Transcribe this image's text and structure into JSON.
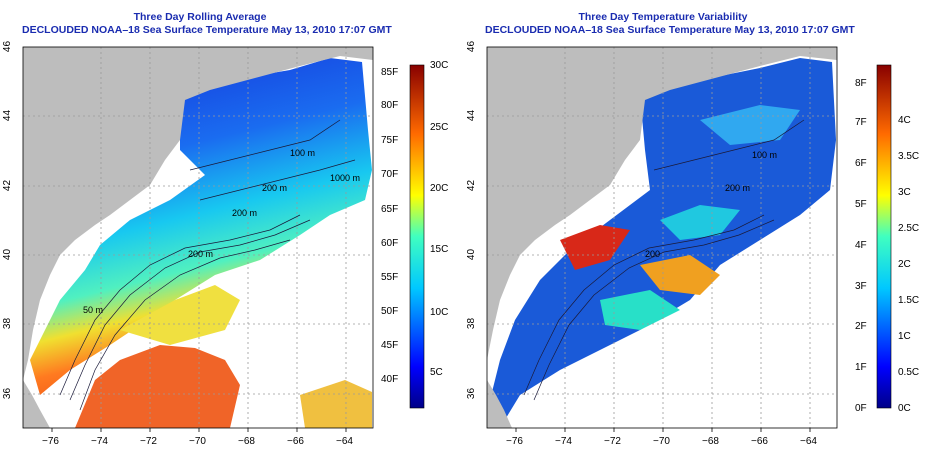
{
  "left_panel": {
    "title_line1": "Three Day Rolling Average",
    "title_line2": "DECLOUDED NOAA–18 Sea Surface Temperature May 13, 2010 17:07 GMT",
    "colorbar_f": [
      "40F",
      "45F",
      "50F",
      "55F",
      "60F",
      "65F",
      "70F",
      "75F",
      "80F",
      "85F"
    ],
    "colorbar_c": [
      "5C",
      "10C",
      "15C",
      "20C",
      "25C",
      "30C"
    ],
    "contour_labels": [
      "100 m",
      "200 m",
      "200 m",
      "50 m",
      "1000 m",
      "200 m"
    ]
  },
  "right_panel": {
    "title_line1": "Three Day Temperature Variability",
    "title_line2": "DECLOUDED NOAA–18 Sea Surface Temperature May 13, 2010 17:07 GMT",
    "colorbar_f": [
      "0F",
      "1F",
      "2F",
      "3F",
      "4F",
      "5F",
      "6F",
      "7F",
      "8F"
    ],
    "colorbar_c": [
      "0C",
      "0.5C",
      "1C",
      "1.5C",
      "2C",
      "2.5C",
      "3C",
      "3.5C",
      "4C"
    ],
    "contour_labels": [
      "100 m",
      "200 m",
      "200"
    ]
  },
  "axes": {
    "x_ticks": [
      "−76",
      "−74",
      "−72",
      "−70",
      "−68",
      "−66",
      "−64"
    ],
    "y_ticks": [
      "36",
      "38",
      "40",
      "42",
      "44",
      "46"
    ]
  },
  "colors": {
    "land": "#bdbdbd",
    "title": "#1a2cb0",
    "grid": "#9a9a9a"
  }
}
